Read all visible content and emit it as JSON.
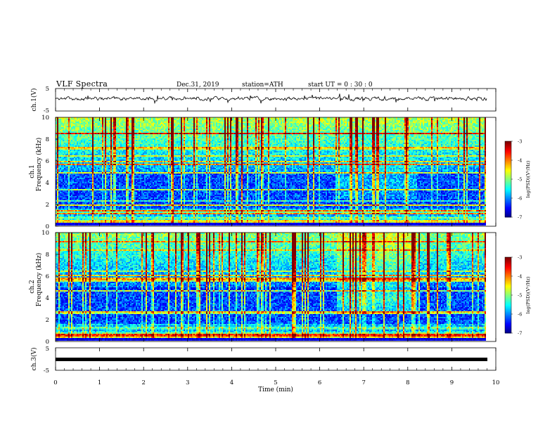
{
  "header": {
    "title": "VLF  Spectra",
    "date": "Dec.31, 2019",
    "station": "station=ATH",
    "start": "start  UT  =    0  : 30 : 0"
  },
  "chart_data": [
    {
      "type": "line",
      "ylabel": "ch.1(V)",
      "ylim": [
        -5,
        5
      ],
      "yticks": [
        "5",
        "-5"
      ],
      "xlim": [
        0,
        10
      ],
      "baseline": 0.5,
      "noise_amplitude": 0.6
    },
    {
      "type": "heatmap",
      "ylabel": "ch.1\nFrequency  (kHz)",
      "ylabel_line1": "ch.1",
      "ylabel_line2": "Frequency  (kHz)",
      "ylim": [
        0,
        10
      ],
      "yticks": [
        "0",
        "2",
        "4",
        "6",
        "8",
        "10"
      ],
      "xlim": [
        0,
        9.8
      ],
      "colorbar": {
        "label": "log(PSD)(V²/Hz)",
        "ticks": [
          "-3",
          "-4",
          "-5",
          "-6",
          "-7"
        ],
        "range": [
          -7,
          -3
        ]
      }
    },
    {
      "type": "heatmap",
      "ylabel": "ch.2\nFrequency  (kHz)",
      "ylabel_line1": "ch.2",
      "ylabel_line2": "Frequency  (kHz)",
      "ylim": [
        0,
        10
      ],
      "yticks": [
        "0",
        "2",
        "4",
        "6",
        "8",
        "10"
      ],
      "xlim": [
        0,
        9.8
      ],
      "colorbar": {
        "label": "log(PSD)(V²/Hz)",
        "ticks": [
          "-3",
          "-4",
          "-5",
          "-6",
          "-7"
        ],
        "range": [
          -7,
          -3
        ]
      }
    },
    {
      "type": "line",
      "ylabel": "ch.3(V)",
      "ylim": [
        -5,
        5
      ],
      "yticks": [
        "5",
        "-5"
      ],
      "xlim": [
        0,
        10
      ],
      "baseline": 0
    }
  ],
  "xaxis": {
    "label": "Time  (min)",
    "ticks": [
      "0",
      "1",
      "2",
      "3",
      "4",
      "5",
      "6",
      "7",
      "8",
      "9",
      "10"
    ],
    "range": [
      0,
      10
    ]
  }
}
